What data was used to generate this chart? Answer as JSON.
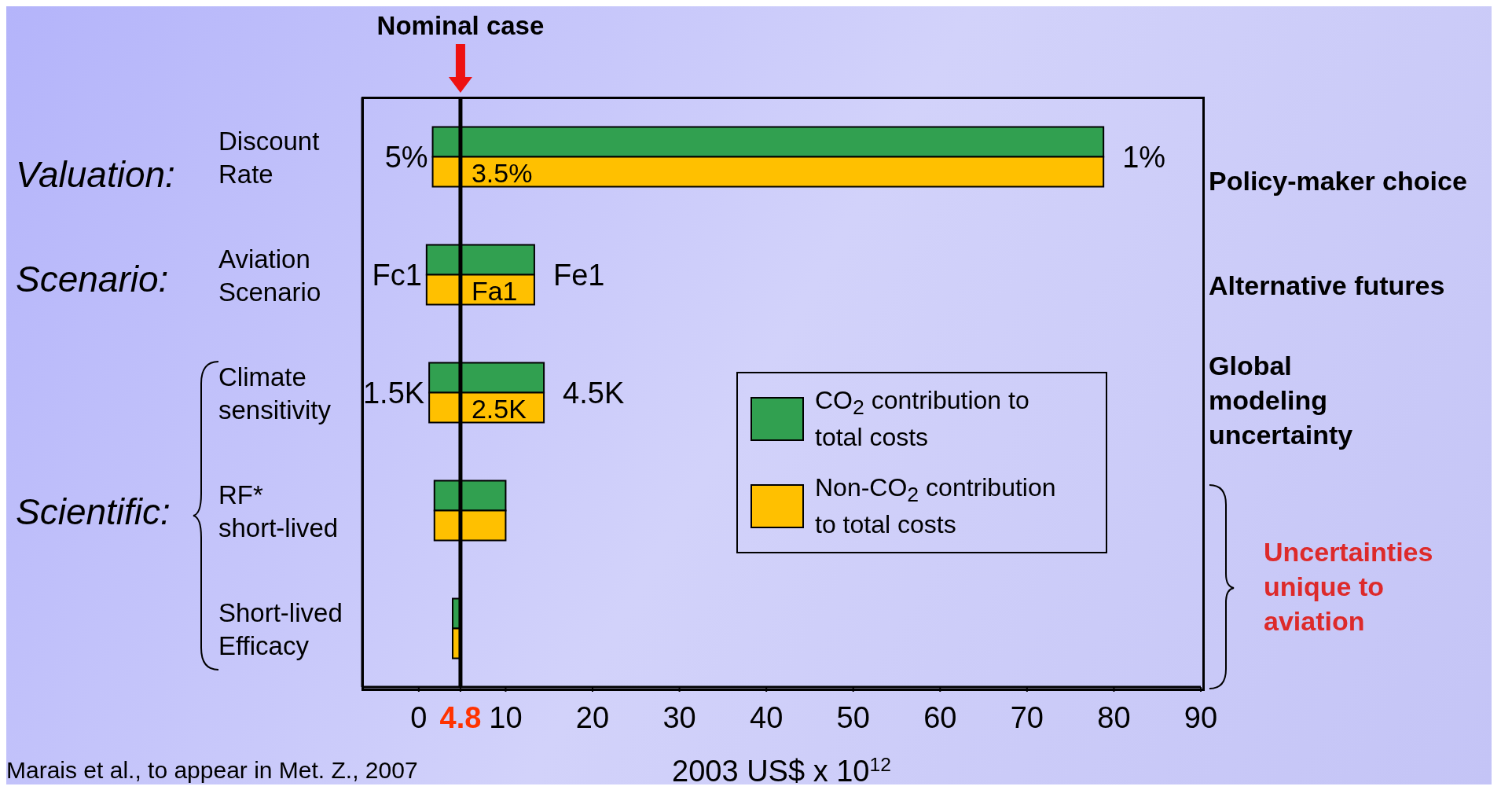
{
  "chart_data": {
    "type": "bar",
    "orientation": "horizontal",
    "xlabel": "2003 US$ x 10$^{12}$",
    "categories": [
      "Discount Rate",
      "Aviation Scenario",
      "Climate sensitivity",
      "RF* short-lived",
      "Short-lived Efficacy"
    ],
    "series": [
      {
        "name": "CO$_{2}$ contribution to total costs",
        "color": "#31a050",
        "base": [
          1.6,
          0.9,
          1.2,
          1.8,
          3.9
        ],
        "values": [
          77.2,
          12.4,
          13.2,
          8.2,
          0.9
        ]
      },
      {
        "name": "Non-CO$_{2}$ contribution to total costs",
        "color": "#ffc000",
        "base": [
          1.6,
          0.9,
          1.2,
          1.8,
          3.9
        ],
        "values": [
          77.2,
          12.4,
          13.2,
          8.2,
          0.9
        ]
      }
    ],
    "xlim": [
      -6.5,
      90
    ],
    "xticks": [
      0,
      {
        "value": 4.8,
        "label": "4.8"
      },
      10,
      20,
      30,
      40,
      50,
      60,
      70,
      80,
      90
    ],
    "ref_lines": [
      {
        "axis": "x",
        "value": 4.8,
        "label": "Nominal case"
      }
    ],
    "legend": "right",
    "annotations": [
      "5%",
      "3.5%",
      "1%",
      "Fc1",
      "Fa1",
      "Fe1",
      "1.5K",
      "2.5K",
      "4.5K",
      "Valuation:",
      "Scenario:",
      "Scientific:",
      "Policy-maker choice",
      "Alternative futures",
      "Global modeling uncertainty",
      "Uncertainties unique to aviation",
      "Marais et al., to appear in Met. Z., 2007"
    ]
  }
}
